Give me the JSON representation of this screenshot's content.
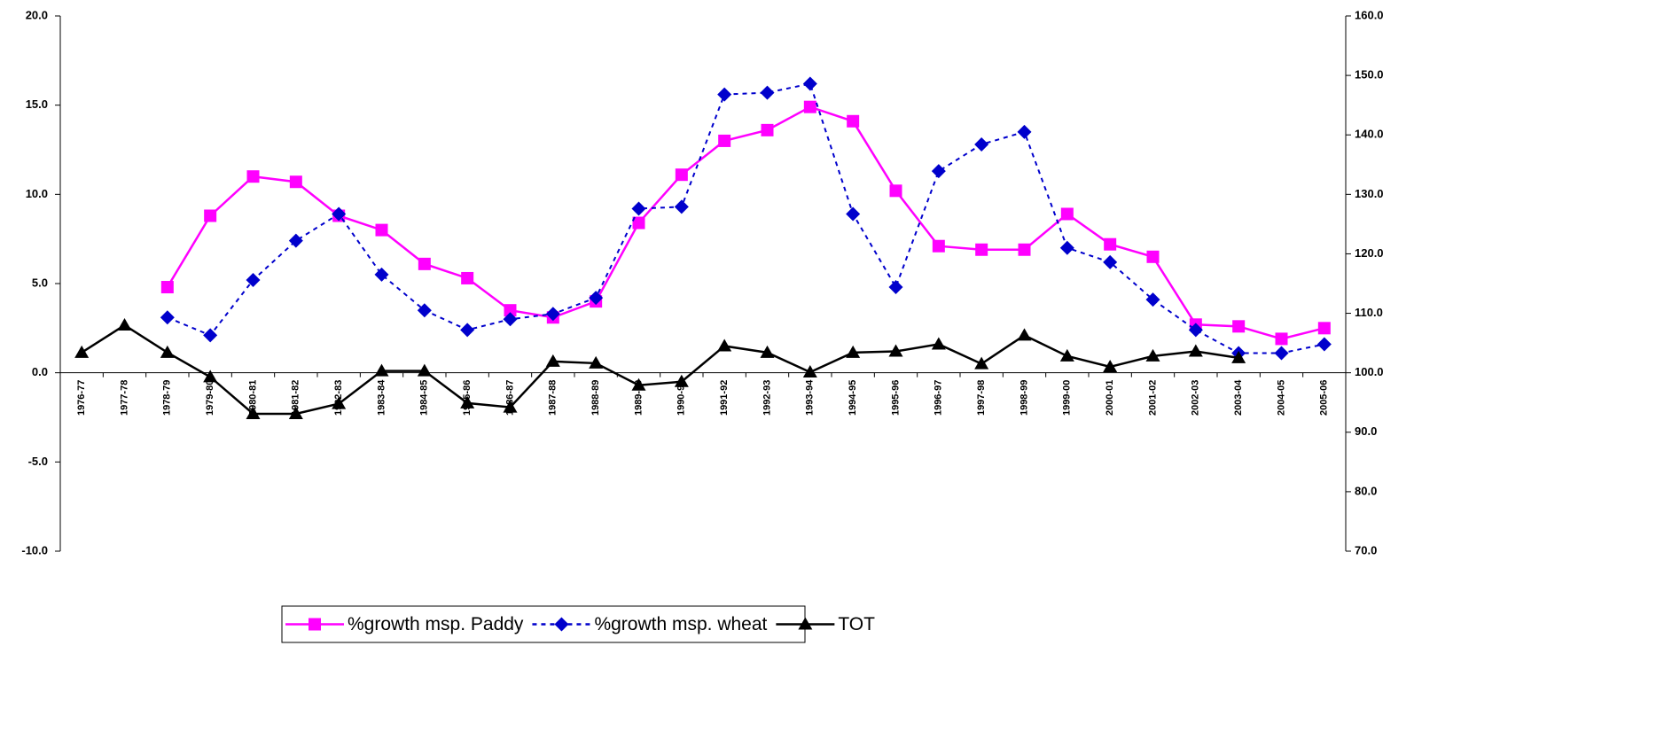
{
  "chart_data": {
    "type": "line",
    "categories": [
      "1976-77",
      "1977-78",
      "1978-79",
      "1979-80",
      "1980-81",
      "1981-82",
      "1982-83",
      "1983-84",
      "1984-85",
      "1985-86",
      "1986-87",
      "1987-88",
      "1988-89",
      "1989-90",
      "1990-91",
      "1991-92",
      "1992-93",
      "1993-94",
      "1994-95",
      "1995-96",
      "1996-97",
      "1997-98",
      "1998-99",
      "1999-00",
      "2000-01",
      "2001-02",
      "2002-03",
      "2003-04",
      "2004-05",
      "2005-06"
    ],
    "series": [
      {
        "name": "%growth msp. Paddy",
        "color": "#ff00ff",
        "marker": "square",
        "dash": false,
        "values": [
          null,
          null,
          4.8,
          8.8,
          11.0,
          10.7,
          8.8,
          8.0,
          6.1,
          5.3,
          3.5,
          3.1,
          4.0,
          8.4,
          11.1,
          13.0,
          13.6,
          14.9,
          14.1,
          10.2,
          7.1,
          6.9,
          6.9,
          8.9,
          7.2,
          6.5,
          2.7,
          2.6,
          1.9,
          2.5
        ]
      },
      {
        "name": "%growth msp. wheat",
        "color": "#0000cc",
        "marker": "diamond",
        "dash": true,
        "values": [
          null,
          null,
          3.1,
          2.1,
          5.2,
          7.4,
          8.9,
          5.5,
          3.5,
          2.4,
          3.0,
          3.3,
          4.2,
          9.2,
          9.3,
          15.6,
          15.7,
          16.2,
          8.9,
          4.8,
          11.3,
          12.8,
          13.5,
          7.0,
          6.2,
          4.1,
          2.4,
          1.1,
          1.1,
          1.6
        ]
      },
      {
        "name": "TOT",
        "color": "#000000",
        "marker": "triangle",
        "dash": false,
        "axis": "y2",
        "values": [
          103.4,
          108.0,
          103.4,
          99.3,
          93.1,
          93.1,
          94.8,
          100.3,
          100.3,
          94.9,
          94.2,
          101.9,
          101.6,
          97.9,
          98.5,
          104.5,
          103.4,
          100.1,
          103.4,
          103.6,
          104.8,
          101.5,
          106.3,
          102.8,
          101.0,
          102.8,
          103.6,
          102.5,
          null,
          null
        ]
      }
    ],
    "ylim": [
      -10,
      20
    ],
    "yticks": [
      {
        "value": -10,
        "label": "-10.0"
      },
      {
        "value": -5,
        "label": "-5.0"
      },
      {
        "value": 0,
        "label": "0.0"
      },
      {
        "value": 5,
        "label": "5.0"
      },
      {
        "value": 10,
        "label": "10.0"
      },
      {
        "value": 15,
        "label": "15.0"
      },
      {
        "value": 20,
        "label": "20.0"
      }
    ],
    "y2lim": [
      70,
      160
    ],
    "y2ticks": [
      {
        "value": 70,
        "label": "70.0"
      },
      {
        "value": 80,
        "label": "80.0"
      },
      {
        "value": 90,
        "label": "90.0"
      },
      {
        "value": 100,
        "label": "100.0"
      },
      {
        "value": 110,
        "label": "110.0"
      },
      {
        "value": 120,
        "label": "120.0"
      },
      {
        "value": 130,
        "label": "130.0"
      },
      {
        "value": 140,
        "label": "140.0"
      },
      {
        "value": 150,
        "label": "150.0"
      },
      {
        "value": 160,
        "label": "160.0"
      }
    ],
    "legend": "bottom"
  }
}
